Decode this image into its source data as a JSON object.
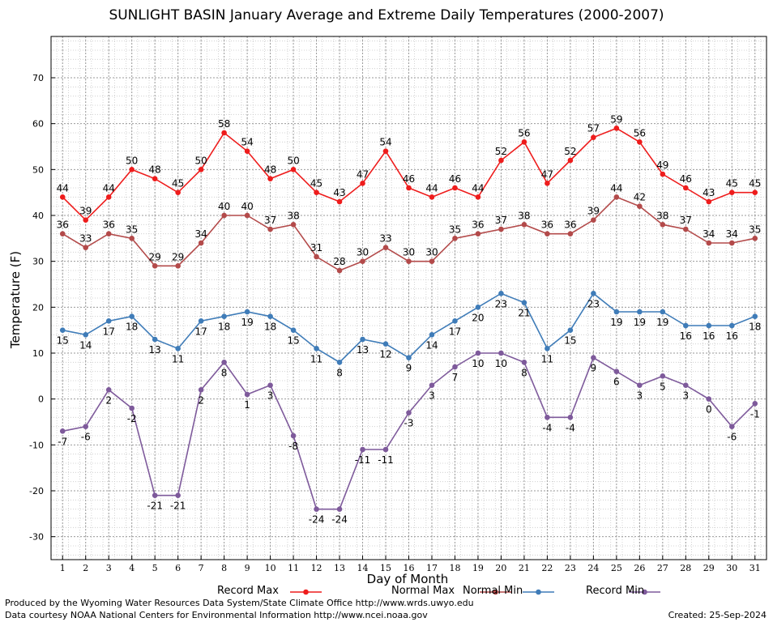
{
  "chart_data": {
    "type": "line",
    "title": "SUNLIGHT BASIN January Average and Extreme Daily Temperatures (2000-2007)",
    "xlabel": "Day of Month",
    "ylabel": "Temperature (F)",
    "x": [
      1,
      2,
      3,
      4,
      5,
      6,
      7,
      8,
      9,
      10,
      11,
      12,
      13,
      14,
      15,
      16,
      17,
      18,
      19,
      20,
      21,
      22,
      23,
      24,
      25,
      26,
      27,
      28,
      29,
      30,
      31
    ],
    "xlim": [
      0.5,
      31.5
    ],
    "ylim": [
      -35,
      79
    ],
    "yticks": [
      -30,
      -20,
      -10,
      0,
      10,
      20,
      30,
      40,
      50,
      60,
      70
    ],
    "grid": true,
    "legend_position": "bottom",
    "series": [
      {
        "name": "Record Max",
        "color": "#ee1c1c",
        "values": [
          44,
          39,
          44,
          50,
          48,
          45,
          50,
          58,
          54,
          48,
          50,
          45,
          43,
          47,
          54,
          46,
          44,
          46,
          44,
          52,
          56,
          47,
          52,
          57,
          59,
          56,
          49,
          46,
          43,
          45,
          45
        ]
      },
      {
        "name": "Normal Max",
        "color": "#b34a4a",
        "values": [
          36,
          33,
          36,
          35,
          29,
          29,
          34,
          40,
          40,
          37,
          38,
          31,
          28,
          30,
          33,
          30,
          30,
          35,
          36,
          37,
          38,
          36,
          36,
          39,
          44,
          42,
          38,
          37,
          34,
          34,
          35
        ]
      },
      {
        "name": "Normal Min",
        "color": "#3f7cb8",
        "values": [
          15,
          14,
          17,
          18,
          13,
          11,
          17,
          18,
          19,
          18,
          15,
          11,
          8,
          13,
          12,
          9,
          14,
          17,
          20,
          23,
          21,
          11,
          15,
          23,
          19,
          19,
          19,
          16,
          16,
          16,
          18
        ]
      },
      {
        "name": "Record Min",
        "color": "#7e5a9b",
        "values": [
          -7,
          -6,
          2,
          -2,
          -21,
          -21,
          2,
          8,
          1,
          3,
          -8,
          -24,
          -24,
          -11,
          -11,
          -3,
          3,
          7,
          10,
          10,
          8,
          -4,
          -4,
          9,
          6,
          3,
          5,
          3,
          0,
          -6,
          -1
        ]
      }
    ]
  },
  "footer": {
    "produced_by": "Produced by the Wyoming Water Resources Data System/State Climate Office http://www.wrds.uwyo.edu",
    "courtesy": "Data courtesy NOAA National Centers for Environmental Information http://www.ncei.noaa.gov",
    "created": "Created:  25-Sep-2024"
  }
}
